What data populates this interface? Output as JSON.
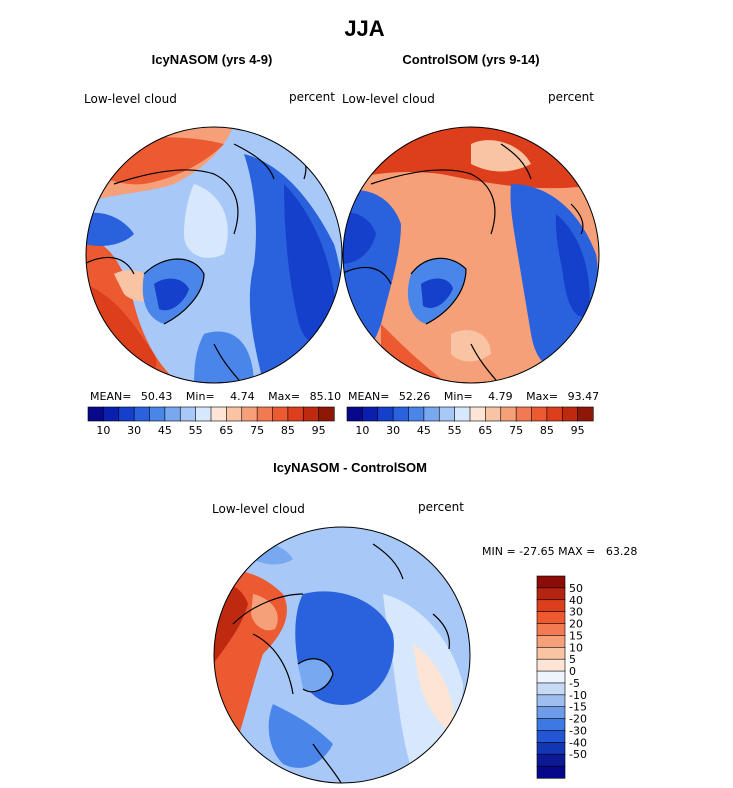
{
  "page": {
    "title": "JJA",
    "variable": "Low-level cloud",
    "units": "percent"
  },
  "panels": [
    {
      "title": "IcyNASOM (yrs 4-9)",
      "stats": {
        "mean_label": "MEAN=",
        "mean": "50.43",
        "min_label": "Min=",
        "min": "4.74",
        "max_label": "Max=",
        "max": "85.10"
      }
    },
    {
      "title": "ControlSOM (yrs 9-14)",
      "stats": {
        "mean_label": "MEAN=",
        "mean": "52.26",
        "min_label": "Min=",
        "min": "4.79",
        "max_label": "Max=",
        "max": "93.47"
      }
    }
  ],
  "diff_panel": {
    "title": "IcyNASOM - ControlSOM",
    "minmax_text": "MIN = -27.65 MAX =   63.28"
  },
  "colorbar_horizontal": {
    "colors": [
      "#08088c",
      "#0a1fae",
      "#1440cc",
      "#2a62de",
      "#4a86ea",
      "#78a8f0",
      "#a8c8f8",
      "#d8e8fc",
      "#fde4d4",
      "#f8c4a4",
      "#f6a07a",
      "#f27a52",
      "#ec5a32",
      "#dd3e1c",
      "#be2a10",
      "#8e1808"
    ],
    "tick_labels": [
      "10",
      "30",
      "45",
      "55",
      "65",
      "75",
      "85",
      "95"
    ]
  },
  "colorbar_vertical": {
    "colors_top_to_bottom": [
      "#8c0c08",
      "#b42410",
      "#dd3e1c",
      "#ee5a30",
      "#f47a52",
      "#f6a07a",
      "#f8c4a4",
      "#fde4d4",
      "#eef4fc",
      "#c6daf6",
      "#9ebef0",
      "#6e9ce8",
      "#3e78e2",
      "#2256d4",
      "#1236b4",
      "#0c1a98",
      "#06088a"
    ],
    "tick_labels": [
      "50",
      "40",
      "30",
      "20",
      "15",
      "10",
      "5",
      "0",
      "-5",
      "-10",
      "-15",
      "-20",
      "-30",
      "-40",
      "-50"
    ]
  },
  "map_fields": {
    "panel1_regions": [
      "warm-pacific-north",
      "warm-siberia",
      "warm-russia",
      "blue-atlantic",
      "blue-greenland",
      "cool-arctic-ocean",
      "blue-north-america"
    ],
    "panel2_regions": [
      "warm-pacific-north",
      "warm-arctic-ocean",
      "warm-barents",
      "blue-atlantic",
      "blue-greenland",
      "blue-canada"
    ],
    "diff_regions": [
      "positive-north-atlantic",
      "negative-arctic-ocean",
      "negative-eurasia",
      "near-zero-pacific"
    ]
  }
}
